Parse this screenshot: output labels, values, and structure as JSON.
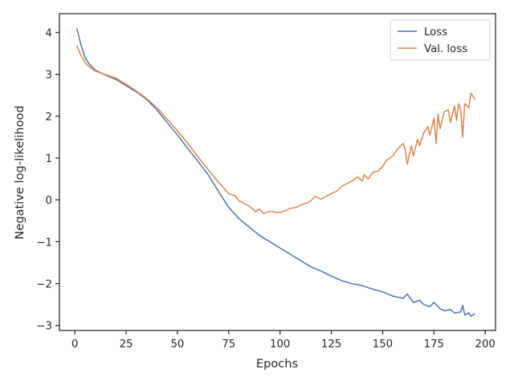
{
  "chart_data": {
    "type": "line",
    "title": "",
    "xlabel": "Epochs",
    "ylabel": "Negative log-likelihood",
    "xlim": [
      -7.5,
      205
    ],
    "ylim": [
      -3.12,
      4.45
    ],
    "xticks": [
      0,
      25,
      50,
      75,
      100,
      125,
      150,
      175,
      200
    ],
    "yticks": [
      -3,
      -2,
      -1,
      0,
      1,
      2,
      3,
      4
    ],
    "grid": false,
    "legend_position": "top-right",
    "series": [
      {
        "name": "Loss",
        "color": "#4c72b0",
        "x": [
          1,
          3,
          5,
          7,
          10,
          15,
          20,
          25,
          30,
          35,
          40,
          45,
          50,
          55,
          60,
          65,
          70,
          75,
          80,
          85,
          90,
          95,
          100,
          105,
          110,
          115,
          120,
          125,
          130,
          135,
          140,
          145,
          150,
          155,
          160,
          162,
          165,
          168,
          170,
          173,
          175,
          178,
          180,
          183,
          185,
          188,
          189,
          190,
          192,
          193,
          195
        ],
        "y": [
          4.1,
          3.7,
          3.4,
          3.25,
          3.1,
          2.98,
          2.88,
          2.73,
          2.58,
          2.4,
          2.15,
          1.85,
          1.55,
          1.23,
          0.92,
          0.6,
          0.2,
          -0.18,
          -0.45,
          -0.65,
          -0.85,
          -1.0,
          -1.15,
          -1.3,
          -1.45,
          -1.6,
          -1.7,
          -1.82,
          -1.93,
          -2.0,
          -2.05,
          -2.13,
          -2.2,
          -2.3,
          -2.35,
          -2.25,
          -2.45,
          -2.4,
          -2.5,
          -2.55,
          -2.45,
          -2.6,
          -2.65,
          -2.62,
          -2.7,
          -2.68,
          -2.52,
          -2.75,
          -2.7,
          -2.78,
          -2.72
        ]
      },
      {
        "name": "Val. loss",
        "color": "#dd8452",
        "x": [
          1,
          3,
          5,
          7,
          10,
          15,
          20,
          25,
          30,
          35,
          40,
          45,
          50,
          55,
          60,
          65,
          70,
          75,
          78,
          80,
          85,
          88,
          90,
          92,
          95,
          98,
          100,
          103,
          105,
          108,
          110,
          113,
          115,
          117,
          120,
          123,
          125,
          128,
          130,
          133,
          135,
          138,
          140,
          141,
          143,
          145,
          148,
          150,
          152,
          155,
          157,
          160,
          161,
          162,
          164,
          165,
          167,
          168,
          170,
          172,
          173,
          175,
          176,
          177,
          178,
          180,
          182,
          183,
          185,
          186,
          187,
          188,
          189,
          190,
          191,
          192,
          193,
          195
        ],
        "y": [
          3.68,
          3.45,
          3.28,
          3.18,
          3.08,
          2.99,
          2.91,
          2.76,
          2.6,
          2.42,
          2.2,
          1.93,
          1.65,
          1.35,
          1.03,
          0.72,
          0.42,
          0.15,
          0.1,
          -0.02,
          -0.15,
          -0.28,
          -0.22,
          -0.33,
          -0.27,
          -0.3,
          -0.3,
          -0.25,
          -0.2,
          -0.18,
          -0.12,
          -0.08,
          -0.02,
          0.08,
          0.02,
          0.1,
          0.15,
          0.22,
          0.32,
          0.4,
          0.45,
          0.55,
          0.45,
          0.6,
          0.5,
          0.65,
          0.7,
          0.8,
          0.95,
          1.05,
          1.2,
          1.35,
          1.2,
          0.85,
          1.3,
          1.05,
          1.45,
          1.3,
          1.6,
          1.75,
          1.55,
          1.95,
          1.35,
          2.05,
          1.7,
          2.1,
          2.15,
          1.85,
          2.25,
          1.9,
          2.3,
          2.15,
          1.5,
          2.3,
          2.25,
          2.2,
          2.55,
          2.4
        ]
      }
    ]
  }
}
